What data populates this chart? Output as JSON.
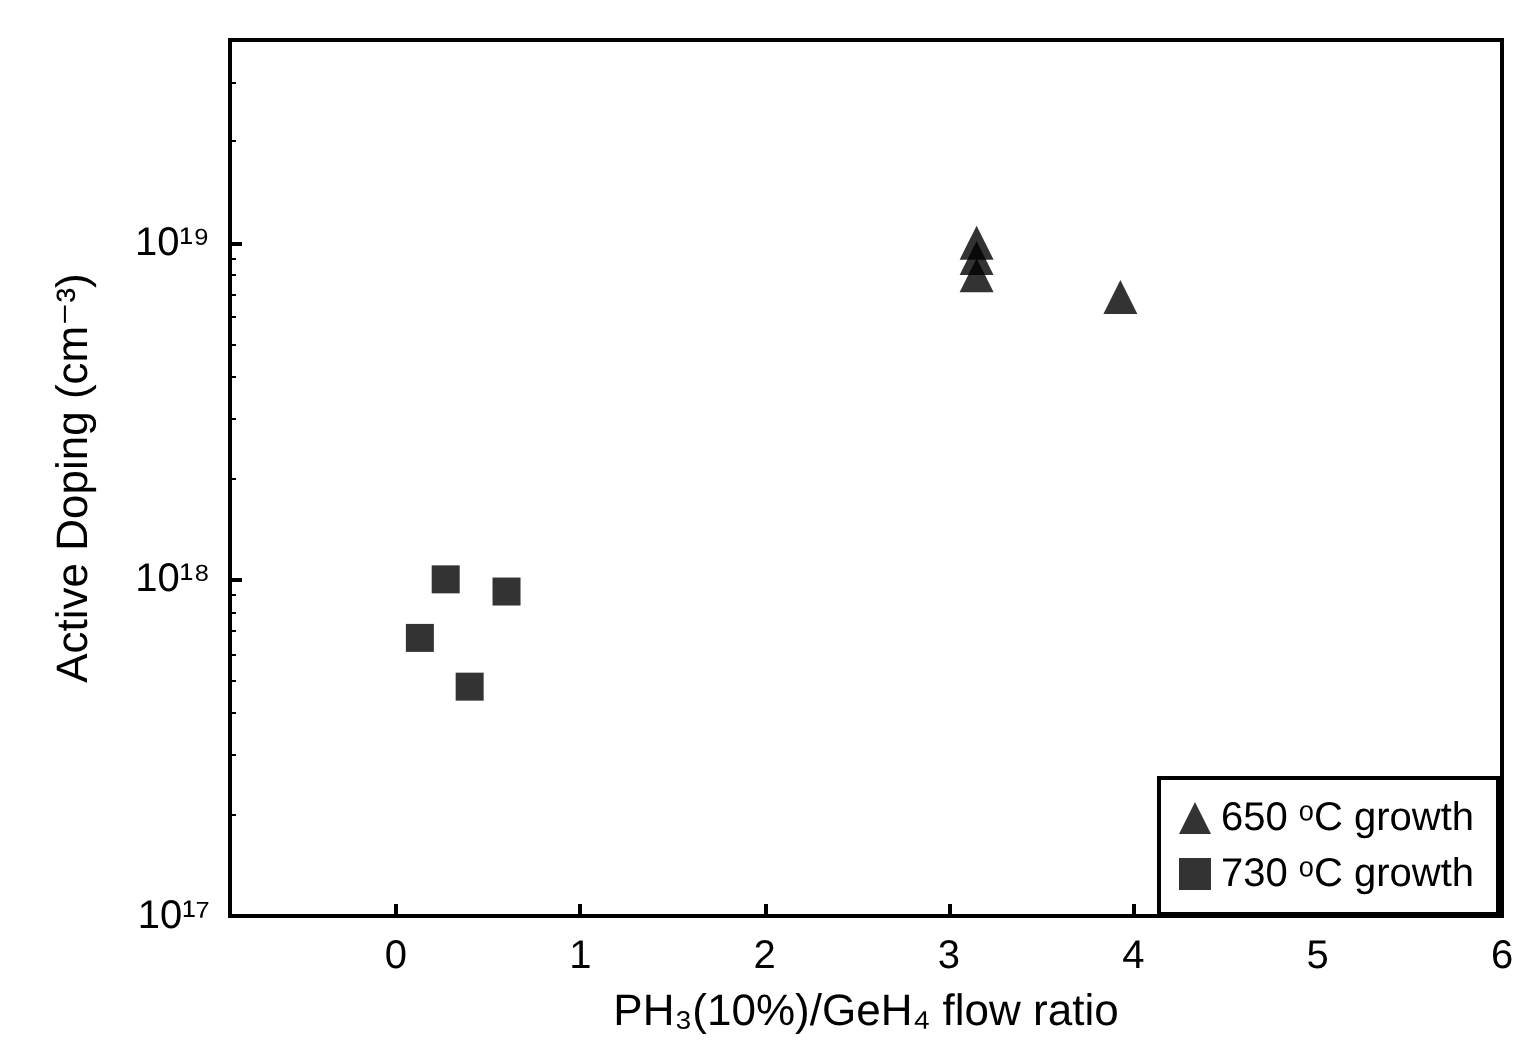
{
  "chart_data": {
    "type": "scatter",
    "xlabel": "PH₃(10%)/GeH₄ flow ratio",
    "ylabel": "Active Doping (cm⁻³)",
    "log": "y",
    "grid": false,
    "legend": "bottom right",
    "xlim": [
      -0.9,
      6
    ],
    "xticks": [
      0,
      1,
      2,
      3,
      4,
      5,
      6
    ],
    "ylim": [
      1e+17,
      4e+19
    ],
    "yticks": [
      {
        "value": 1e+17,
        "label": "10¹⁷"
      },
      {
        "value": 1e+18,
        "label": "10¹⁸"
      },
      {
        "value": 1e+19,
        "label": "10¹⁹"
      }
    ],
    "series": [
      {
        "name": "650 ᵒC growth",
        "color": "#000000",
        "marker": "triangle",
        "x": [
          3.15,
          3.15,
          3.15,
          3.93
        ],
        "values": [
          1e+19,
          9e+18,
          8e+18,
          6.9e+18
        ]
      },
      {
        "name": "730 ᵒC growth",
        "color": "#000000",
        "marker": "square",
        "x": [
          0.13,
          0.27,
          0.4,
          0.6
        ],
        "values": [
          6.7e+17,
          1e+18,
          4.8e+17,
          9.2e+17
        ]
      }
    ]
  }
}
